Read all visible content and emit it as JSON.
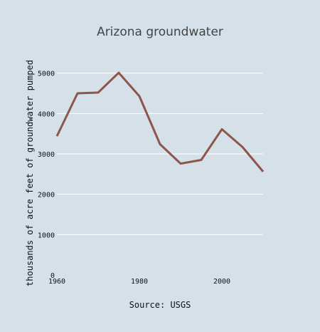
{
  "chart_data": {
    "type": "line",
    "title": "Arizona groundwater",
    "xlabel": "Source: USGS",
    "ylabel": "thousands of acre feet of groundwater pumped",
    "x": [
      1960,
      1965,
      1970,
      1975,
      1980,
      1985,
      1990,
      1995,
      2000,
      2005,
      2010
    ],
    "series": [
      {
        "values": [
          3440,
          4500,
          4520,
          5010,
          4430,
          3240,
          2760,
          2850,
          3610,
          3170,
          2560
        ],
        "color": "#8c564b"
      }
    ],
    "xticks": [
      "1960",
      "1980",
      "2000"
    ],
    "yticks": [
      "0",
      "1000",
      "2000",
      "3000",
      "4000",
      "5000"
    ],
    "xlim": [
      1960,
      2010
    ],
    "ylim": [
      0,
      5400
    ],
    "grid": "horizontal",
    "background": "#d5e0e8",
    "gridcolor": "#ffffff"
  }
}
